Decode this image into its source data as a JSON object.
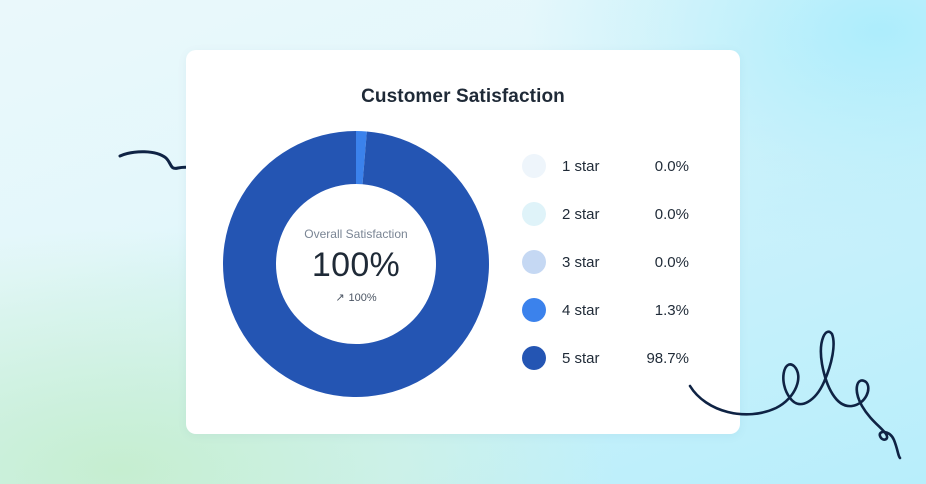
{
  "card": {
    "title": "Customer Satisfaction"
  },
  "center": {
    "label": "Overall Satisfaction",
    "value": "100%",
    "trend_arrow": "↗",
    "trend_value": "100%"
  },
  "colors": {
    "star_1": "#eef5fb",
    "star_2": "#dff3f9",
    "star_3": "#c5d8f3",
    "star_4": "#3b82ec",
    "star_5": "#2455b3",
    "doodle": "#0f2344"
  },
  "chart_data": {
    "type": "pie",
    "title": "Customer Satisfaction",
    "center_label": "Overall Satisfaction",
    "center_value": "100%",
    "categories": [
      "1 star",
      "2 star",
      "3 star",
      "4 star",
      "5 star"
    ],
    "values": [
      0.0,
      0.0,
      0.0,
      1.3,
      98.7
    ],
    "value_labels": [
      "0.0%",
      "0.0%",
      "0.0%",
      "1.3%",
      "98.7%"
    ],
    "unit": "%",
    "donut": true,
    "legend_position": "right"
  },
  "icons": {
    "trend": "arrow-up-right-icon",
    "decor_left": "scribble-doodle",
    "decor_right": "loop-doodle"
  }
}
